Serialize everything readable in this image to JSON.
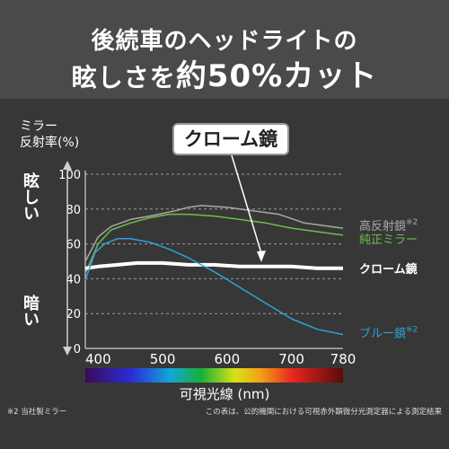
{
  "header": {
    "line1": "後続車のヘッドライトの",
    "line2_a": "眩しさを",
    "line2_b": "約50%カット"
  },
  "axis_title_line1": "ミラー",
  "axis_title_line2": "反射率(%)",
  "side_labels": {
    "top": "眩しい",
    "bottom": "暗い"
  },
  "callout": "クローム鏡",
  "footnotes": {
    "left": "※2 当社製ミラー",
    "right": "この表は、公的機関における可視赤外顕微分光測定器による測定結果"
  },
  "colors": {
    "background": "#373737",
    "header_bg": "#4a4a4a"
  },
  "chart_data": {
    "type": "line",
    "xlabel": "可視光線 (nm)",
    "ylabel": "ミラー 反射率(%)",
    "x_ticks": [
      "400",
      "500",
      "600",
      "700",
      "780"
    ],
    "y_ticks": [
      "0",
      "20",
      "40",
      "60",
      "80",
      "100"
    ],
    "xlim": [
      380,
      780
    ],
    "ylim": [
      0,
      100
    ],
    "grid": true,
    "legend": "right of line ends",
    "series": [
      {
        "name": "高反射鏡",
        "note": "※2",
        "color": "#a8a8a8",
        "width": 1.5,
        "points": [
          [
            380,
            50
          ],
          [
            400,
            64
          ],
          [
            420,
            70
          ],
          [
            450,
            74
          ],
          [
            480,
            76
          ],
          [
            520,
            79
          ],
          [
            540,
            81
          ],
          [
            560,
            82
          ],
          [
            600,
            81
          ],
          [
            640,
            79
          ],
          [
            680,
            77
          ],
          [
            720,
            72
          ],
          [
            760,
            70
          ],
          [
            780,
            69
          ]
        ]
      },
      {
        "name": "純正ミラー",
        "note": "",
        "color": "#6bbf4a",
        "width": 1.5,
        "points": [
          [
            380,
            43
          ],
          [
            400,
            60
          ],
          [
            420,
            68
          ],
          [
            450,
            72
          ],
          [
            480,
            75
          ],
          [
            510,
            77
          ],
          [
            540,
            77
          ],
          [
            580,
            76
          ],
          [
            620,
            74
          ],
          [
            660,
            72
          ],
          [
            700,
            69
          ],
          [
            740,
            67
          ],
          [
            780,
            65
          ]
        ]
      },
      {
        "name": "クローム鏡",
        "note": "",
        "color": "#ffffff",
        "width": 4,
        "points": [
          [
            380,
            46
          ],
          [
            400,
            47
          ],
          [
            430,
            48
          ],
          [
            460,
            49
          ],
          [
            500,
            49
          ],
          [
            540,
            48
          ],
          [
            580,
            48
          ],
          [
            620,
            47
          ],
          [
            660,
            47
          ],
          [
            700,
            47
          ],
          [
            740,
            46
          ],
          [
            780,
            46
          ]
        ]
      },
      {
        "name": "ブルー鏡",
        "note": "※2",
        "color": "#2ea3dc",
        "width": 1.5,
        "points": [
          [
            380,
            39
          ],
          [
            395,
            55
          ],
          [
            410,
            60
          ],
          [
            430,
            63
          ],
          [
            450,
            63
          ],
          [
            480,
            61
          ],
          [
            510,
            57
          ],
          [
            540,
            52
          ],
          [
            580,
            44
          ],
          [
            620,
            35
          ],
          [
            660,
            26
          ],
          [
            700,
            17
          ],
          [
            740,
            11
          ],
          [
            780,
            8
          ]
        ]
      }
    ]
  }
}
